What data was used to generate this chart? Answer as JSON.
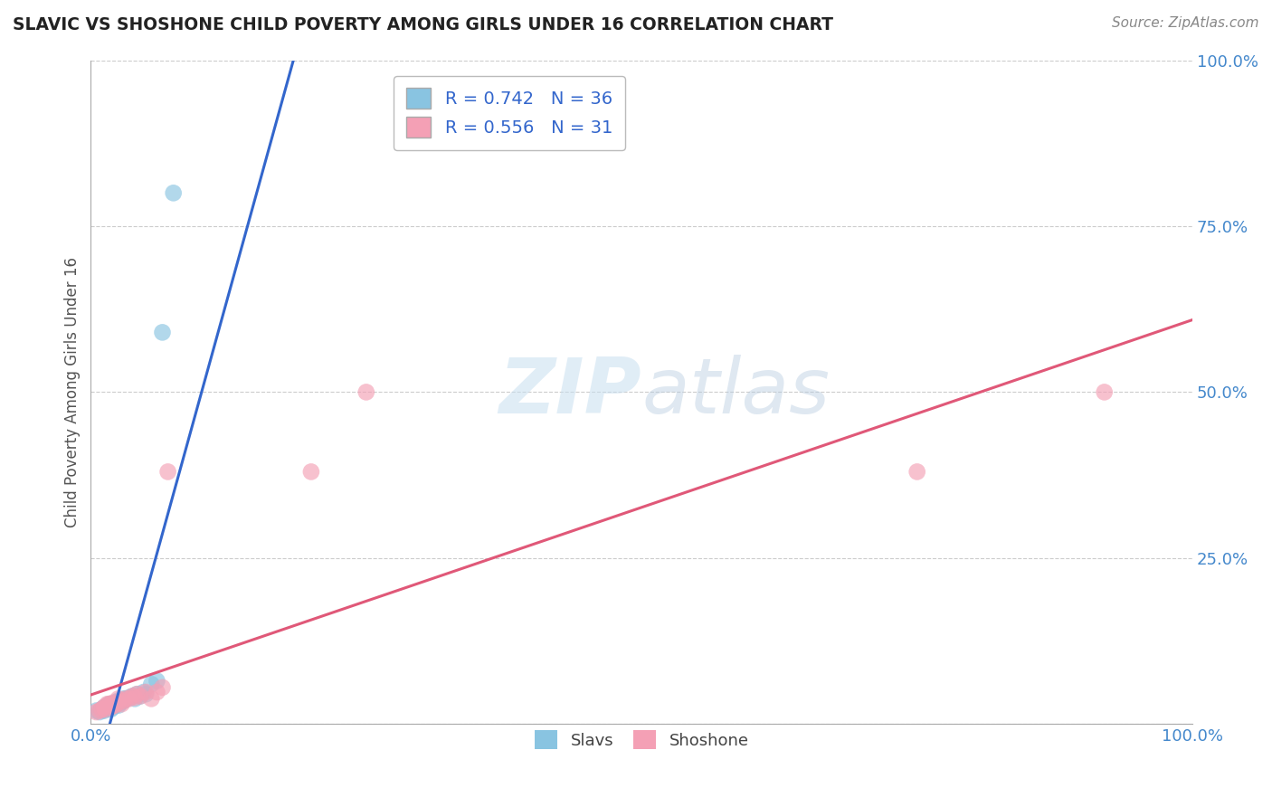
{
  "title": "SLAVIC VS SHOSHONE CHILD POVERTY AMONG GIRLS UNDER 16 CORRELATION CHART",
  "source": "Source: ZipAtlas.com",
  "ylabel": "Child Poverty Among Girls Under 16",
  "xlim": [
    0.0,
    1.0
  ],
  "ylim": [
    0.0,
    1.0
  ],
  "xticks": [
    0.0,
    0.25,
    0.5,
    0.75,
    1.0
  ],
  "xticklabels": [
    "0.0%",
    "",
    "",
    "",
    "100.0%"
  ],
  "yticks": [
    0.0,
    0.25,
    0.5,
    0.75,
    1.0
  ],
  "yticklabels": [
    "",
    "25.0%",
    "50.0%",
    "75.0%",
    "100.0%"
  ],
  "slavic_R": 0.742,
  "slavic_N": 36,
  "shoshone_R": 0.556,
  "shoshone_N": 31,
  "slavic_color": "#89c4e1",
  "shoshone_color": "#f4a0b5",
  "slavic_line_color": "#3366cc",
  "shoshone_line_color": "#e05878",
  "background_color": "#ffffff",
  "grid_color": "#cccccc",
  "tick_color": "#4488cc",
  "slavic_x": [
    0.005,
    0.008,
    0.01,
    0.012,
    0.012,
    0.013,
    0.015,
    0.015,
    0.016,
    0.017,
    0.018,
    0.018,
    0.02,
    0.02,
    0.022,
    0.022,
    0.023,
    0.024,
    0.025,
    0.025,
    0.027,
    0.028,
    0.03,
    0.03,
    0.032,
    0.035,
    0.038,
    0.04,
    0.042,
    0.045,
    0.048,
    0.05,
    0.055,
    0.06,
    0.065,
    0.075
  ],
  "slavic_y": [
    0.02,
    0.018,
    0.022,
    0.02,
    0.025,
    0.022,
    0.025,
    0.028,
    0.025,
    0.03,
    0.022,
    0.028,
    0.025,
    0.03,
    0.028,
    0.032,
    0.03,
    0.032,
    0.028,
    0.035,
    0.032,
    0.035,
    0.035,
    0.038,
    0.038,
    0.04,
    0.042,
    0.038,
    0.045,
    0.042,
    0.048,
    0.045,
    0.06,
    0.065,
    0.59,
    0.8
  ],
  "shoshone_x": [
    0.005,
    0.008,
    0.01,
    0.012,
    0.013,
    0.015,
    0.015,
    0.017,
    0.018,
    0.02,
    0.02,
    0.022,
    0.025,
    0.025,
    0.028,
    0.03,
    0.032,
    0.035,
    0.038,
    0.04,
    0.042,
    0.045,
    0.05,
    0.055,
    0.06,
    0.065,
    0.07,
    0.2,
    0.25,
    0.75,
    0.92
  ],
  "shoshone_y": [
    0.018,
    0.02,
    0.022,
    0.025,
    0.022,
    0.028,
    0.03,
    0.03,
    0.025,
    0.028,
    0.032,
    0.028,
    0.032,
    0.038,
    0.03,
    0.035,
    0.038,
    0.038,
    0.042,
    0.04,
    0.045,
    0.042,
    0.048,
    0.038,
    0.048,
    0.055,
    0.38,
    0.38,
    0.5,
    0.38,
    0.5
  ]
}
